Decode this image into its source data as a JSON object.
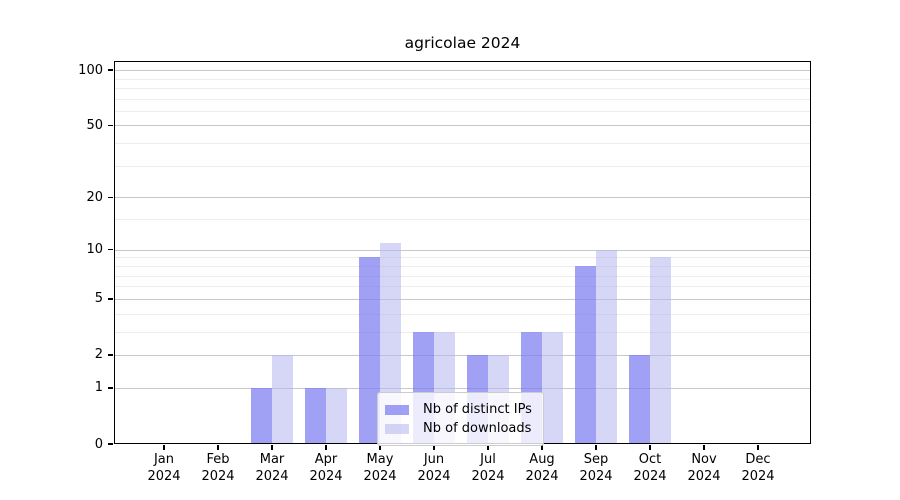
{
  "chart_data": {
    "type": "bar",
    "title": "agricolae 2024",
    "xlabel": "",
    "ylabel": "",
    "yscale": "log1p",
    "ylim": [
      0,
      112
    ],
    "grid": true,
    "legend_position": "inside-bottom-center",
    "categories": [
      {
        "month": "Jan",
        "year": "2024"
      },
      {
        "month": "Feb",
        "year": "2024"
      },
      {
        "month": "Mar",
        "year": "2024"
      },
      {
        "month": "Apr",
        "year": "2024"
      },
      {
        "month": "May",
        "year": "2024"
      },
      {
        "month": "Jun",
        "year": "2024"
      },
      {
        "month": "Jul",
        "year": "2024"
      },
      {
        "month": "Aug",
        "year": "2024"
      },
      {
        "month": "Sep",
        "year": "2024"
      },
      {
        "month": "Oct",
        "year": "2024"
      },
      {
        "month": "Nov",
        "year": "2024"
      },
      {
        "month": "Dec",
        "year": "2024"
      }
    ],
    "series": [
      {
        "name": "Nb of distinct IPs",
        "color": "#7b7bf0",
        "alpha": 0.72,
        "values": [
          0,
          0,
          1,
          1,
          9,
          3,
          2,
          3,
          8,
          2,
          0,
          0
        ]
      },
      {
        "name": "Nb of downloads",
        "color": "#b4b4ee",
        "alpha": 0.55,
        "values": [
          0,
          0,
          2,
          1,
          11,
          3,
          2,
          3,
          10,
          9,
          0,
          0
        ]
      }
    ],
    "yticks": [
      0,
      1,
      2,
      5,
      10,
      20,
      50,
      100
    ],
    "yticks_minor": [
      3,
      4,
      6,
      7,
      8,
      9,
      15,
      30,
      40,
      60,
      70,
      80,
      90
    ]
  },
  "colors": {
    "axis": "#000000",
    "grid_major": "#c8c8c8",
    "grid_minor": "#ececec",
    "legend_border": "#cccccc",
    "legend_background": "rgba(255,255,255,0.8)",
    "background": "#ffffff"
  }
}
